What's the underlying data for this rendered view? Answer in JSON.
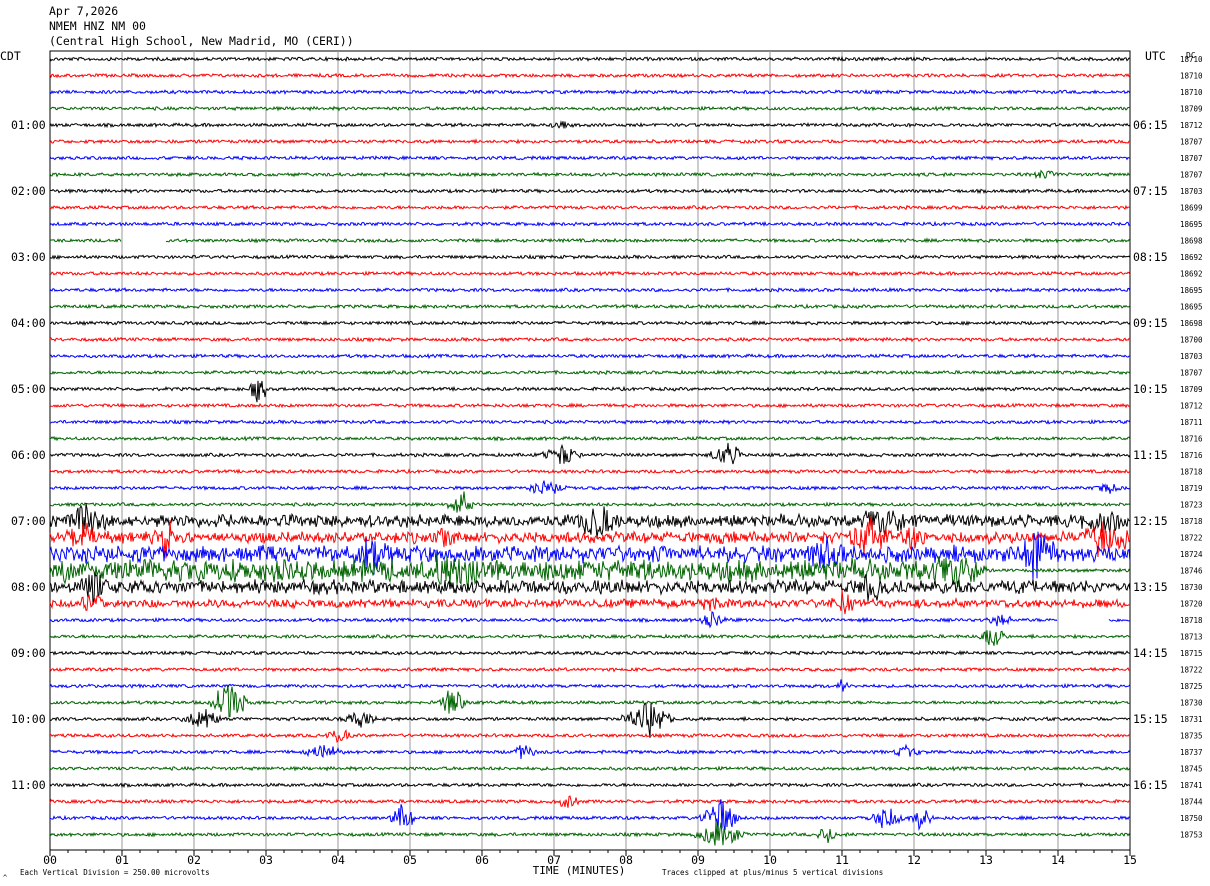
{
  "header": {
    "date": "Apr 7,2026",
    "station": "NMEM HNZ NM 00",
    "location": "(Central High School, New Madrid, MO (CERI))"
  },
  "left_tz": "CDT",
  "right_tz": "UTC",
  "dc_label": "DC",
  "footer": {
    "scale": "Each Vertical Division =  250.00 microvolts",
    "clip": "Traces clipped at plus/minus 5 vertical divisions",
    "mark": "^"
  },
  "colors": {
    "trace_cycle": [
      "#000000",
      "#ff0000",
      "#0000ff",
      "#006400"
    ],
    "grid": "#999999"
  },
  "chart_data": {
    "type": "line",
    "title": "NMEM HNZ NM 00",
    "xlabel": "TIME (MINUTES)",
    "ylabel": "",
    "xlim": [
      0,
      15
    ],
    "x_ticks": [
      "00",
      "01",
      "02",
      "03",
      "04",
      "05",
      "06",
      "07",
      "08",
      "09",
      "10",
      "11",
      "12",
      "13",
      "14",
      "15"
    ],
    "left_hour_labels": [
      "01:00",
      "02:00",
      "03:00",
      "04:00",
      "05:00",
      "06:00",
      "07:00",
      "08:00",
      "09:00",
      "10:00",
      "11:00"
    ],
    "right_hour_labels": [
      "06:15",
      "07:15",
      "08:15",
      "09:15",
      "10:15",
      "11:15",
      "12:15",
      "13:15",
      "14:15",
      "15:15",
      "16:15"
    ],
    "dc_offsets": [
      18710,
      18710,
      18710,
      18709,
      18712,
      18707,
      18707,
      18707,
      18703,
      18699,
      18695,
      18698,
      18692,
      18692,
      18695,
      18695,
      18698,
      18700,
      18703,
      18707,
      18709,
      18712,
      18711,
      18716,
      18716,
      18718,
      18719,
      18723,
      18718,
      18722,
      18724,
      18746,
      18730,
      18720,
      18718,
      18713,
      18715,
      18722,
      18725,
      18730,
      18731,
      18735,
      18737,
      18745,
      18741,
      18744,
      18750,
      18753
    ],
    "lines_count": 48,
    "minutes_per_line": 15,
    "events": [
      {
        "line": 4,
        "minute": 7.1,
        "amp": 0.3,
        "dur": 0.2
      },
      {
        "line": 7,
        "minute": 13.8,
        "amp": 0.2,
        "dur": 0.3
      },
      {
        "line": 20,
        "minute": 2.9,
        "amp": 1.0,
        "dur": 0.15
      },
      {
        "line": 24,
        "minute": 7.1,
        "amp": 0.8,
        "dur": 0.3
      },
      {
        "line": 24,
        "minute": 9.4,
        "amp": 0.8,
        "dur": 0.3
      },
      {
        "line": 26,
        "minute": 6.9,
        "amp": 0.5,
        "dur": 0.3
      },
      {
        "line": 26,
        "minute": 14.7,
        "amp": 0.3,
        "dur": 0.2
      },
      {
        "line": 27,
        "minute": 5.7,
        "amp": 1.0,
        "dur": 0.2
      },
      {
        "line": 28,
        "minute": 0.5,
        "amp": 1.1,
        "dur": 0.3
      },
      {
        "line": 28,
        "minute": 7.6,
        "amp": 1.4,
        "dur": 0.3
      },
      {
        "line": 28,
        "minute": 11.6,
        "amp": 0.9,
        "dur": 0.4
      },
      {
        "line": 28,
        "minute": 14.6,
        "amp": 1.0,
        "dur": 0.3
      },
      {
        "line": 29,
        "minute": 0.5,
        "amp": 1.0,
        "dur": 0.3
      },
      {
        "line": 29,
        "minute": 1.6,
        "amp": 1.1,
        "dur": 0.2
      },
      {
        "line": 29,
        "minute": 5.5,
        "amp": 0.6,
        "dur": 0.2
      },
      {
        "line": 29,
        "minute": 11.4,
        "amp": 1.1,
        "dur": 0.4
      },
      {
        "line": 29,
        "minute": 12.0,
        "amp": 1.0,
        "dur": 0.2
      },
      {
        "line": 29,
        "minute": 14.7,
        "amp": 1.3,
        "dur": 0.4
      },
      {
        "line": 30,
        "minute": 4.5,
        "amp": 1.1,
        "dur": 0.3
      },
      {
        "line": 30,
        "minute": 10.8,
        "amp": 1.1,
        "dur": 0.3
      },
      {
        "line": 30,
        "minute": 13.7,
        "amp": 1.4,
        "dur": 0.3
      },
      {
        "line": 31,
        "minute": 5.6,
        "amp": 1.0,
        "dur": 0.4
      },
      {
        "line": 31,
        "minute": 12.6,
        "amp": 0.8,
        "dur": 0.3
      },
      {
        "line": 32,
        "minute": 0.6,
        "amp": 0.9,
        "dur": 0.2
      },
      {
        "line": 32,
        "minute": 11.4,
        "amp": 0.8,
        "dur": 0.2
      },
      {
        "line": 33,
        "minute": 0.6,
        "amp": 0.6,
        "dur": 0.2
      },
      {
        "line": 33,
        "minute": 9.2,
        "amp": 0.4,
        "dur": 0.2
      },
      {
        "line": 33,
        "minute": 11.0,
        "amp": 0.7,
        "dur": 0.2
      },
      {
        "line": 34,
        "minute": 9.2,
        "amp": 0.5,
        "dur": 0.2
      },
      {
        "line": 34,
        "minute": 13.2,
        "amp": 0.4,
        "dur": 0.2
      },
      {
        "line": 35,
        "minute": 13.1,
        "amp": 0.8,
        "dur": 0.2
      },
      {
        "line": 38,
        "minute": 11.0,
        "amp": 0.5,
        "dur": 0.1
      },
      {
        "line": 39,
        "minute": 2.5,
        "amp": 1.6,
        "dur": 0.3
      },
      {
        "line": 39,
        "minute": 5.6,
        "amp": 1.0,
        "dur": 0.2
      },
      {
        "line": 40,
        "minute": 2.1,
        "amp": 0.9,
        "dur": 0.3
      },
      {
        "line": 40,
        "minute": 4.3,
        "amp": 0.5,
        "dur": 0.3
      },
      {
        "line": 40,
        "minute": 8.3,
        "amp": 1.3,
        "dur": 0.4
      },
      {
        "line": 41,
        "minute": 4.0,
        "amp": 0.6,
        "dur": 0.2
      },
      {
        "line": 42,
        "minute": 3.8,
        "amp": 0.5,
        "dur": 0.3
      },
      {
        "line": 42,
        "minute": 6.6,
        "amp": 0.6,
        "dur": 0.2
      },
      {
        "line": 42,
        "minute": 11.9,
        "amp": 0.4,
        "dur": 0.2
      },
      {
        "line": 45,
        "minute": 7.2,
        "amp": 0.5,
        "dur": 0.2
      },
      {
        "line": 46,
        "minute": 4.9,
        "amp": 1.0,
        "dur": 0.2
      },
      {
        "line": 46,
        "minute": 9.3,
        "amp": 1.3,
        "dur": 0.3
      },
      {
        "line": 46,
        "minute": 11.6,
        "amp": 0.8,
        "dur": 0.3
      },
      {
        "line": 46,
        "minute": 12.1,
        "amp": 0.7,
        "dur": 0.2
      },
      {
        "line": 47,
        "minute": 9.3,
        "amp": 1.0,
        "dur": 0.4
      },
      {
        "line": 47,
        "minute": 10.8,
        "amp": 0.5,
        "dur": 0.2
      }
    ],
    "noisy_lines": [
      {
        "line": 28,
        "level": 0.35
      },
      {
        "line": 29,
        "level": 0.3
      },
      {
        "line": 30,
        "level": 0.5
      },
      {
        "line": 31,
        "level": 0.7,
        "end_minute": 13.0
      },
      {
        "line": 32,
        "level": 0.4
      },
      {
        "line": 33,
        "level": 0.2
      }
    ],
    "gaps": [
      {
        "line": 11,
        "from": 1.0,
        "to": 1.6
      },
      {
        "line": 34,
        "from": 14.0,
        "to": 14.7
      }
    ],
    "last_line_end_minute": 15
  }
}
